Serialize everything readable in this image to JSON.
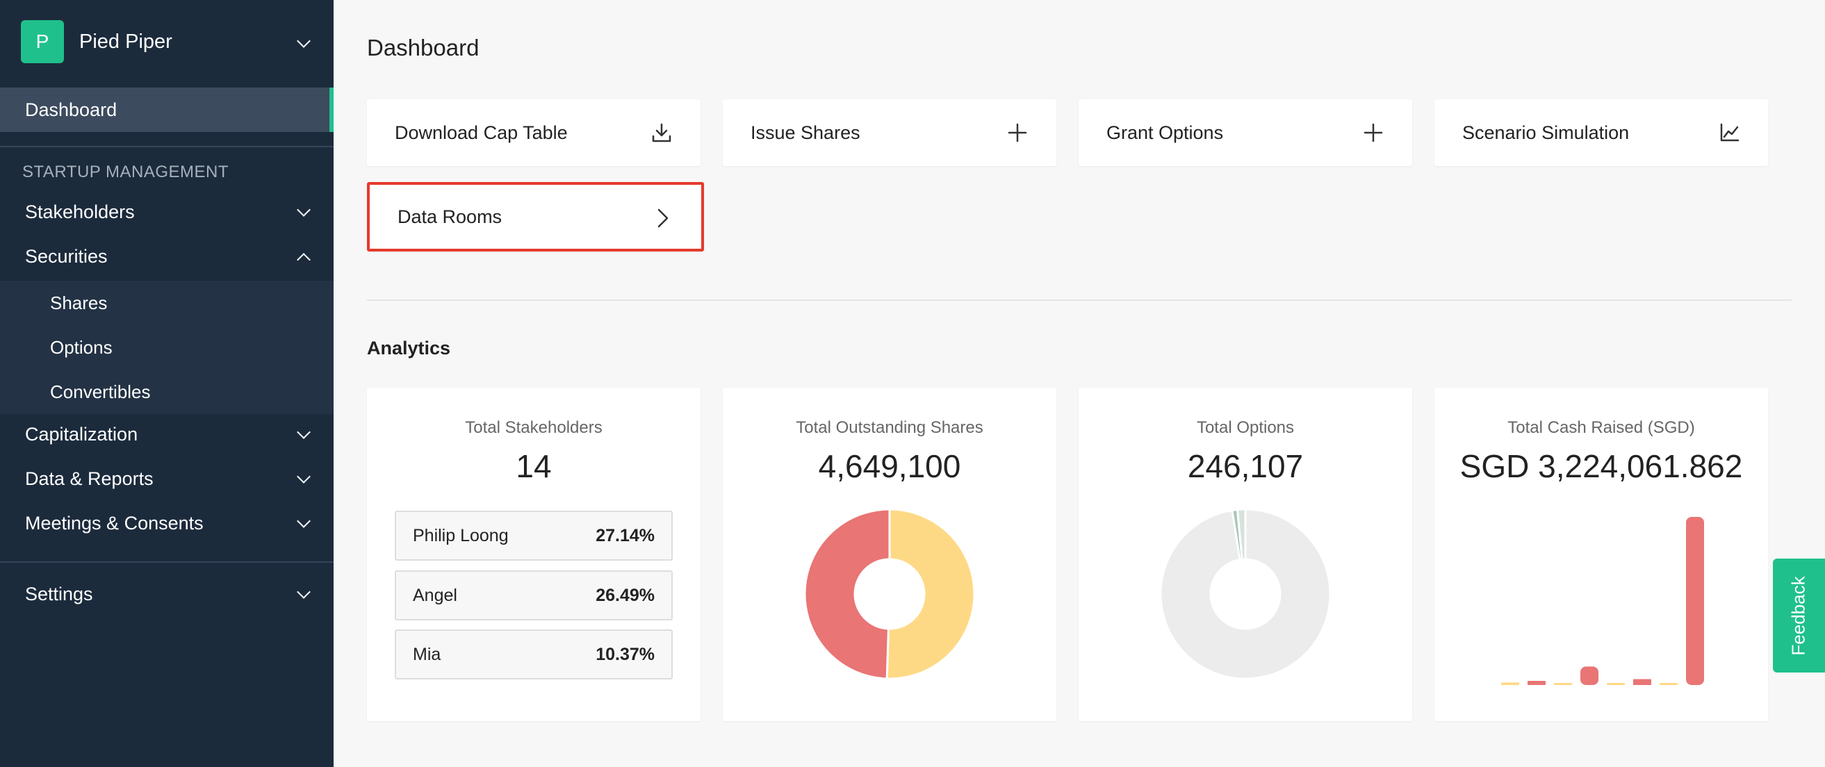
{
  "org": {
    "initial": "P",
    "name": "Pied Piper"
  },
  "sidebar": {
    "active_item": "Dashboard",
    "section_label": "STARTUP MANAGEMENT",
    "items": [
      {
        "label": "Stakeholders"
      },
      {
        "label": "Securities"
      },
      {
        "label": "Capitalization"
      },
      {
        "label": "Data & Reports"
      },
      {
        "label": "Meetings & Consents"
      },
      {
        "label": "Settings"
      }
    ],
    "securities_subitems": [
      {
        "label": "Shares"
      },
      {
        "label": "Options"
      },
      {
        "label": "Convertibles"
      }
    ]
  },
  "main": {
    "title": "Dashboard",
    "actions": [
      {
        "label": "Download Cap Table",
        "icon": "download-icon"
      },
      {
        "label": "Issue Shares",
        "icon": "plus-icon"
      },
      {
        "label": "Grant Options",
        "icon": "plus-icon"
      },
      {
        "label": "Scenario Simulation",
        "icon": "line-chart-icon"
      },
      {
        "label": "Data Rooms",
        "icon": "chevron-right-icon"
      }
    ],
    "analytics_title": "Analytics",
    "stats": {
      "stakeholders": {
        "label": "Total Stakeholders",
        "value": "14",
        "top_holders": [
          {
            "name": "Philip Loong",
            "pct": "27.14%"
          },
          {
            "name": "Angel",
            "pct": "26.49%"
          },
          {
            "name": "Mia",
            "pct": "10.37%"
          }
        ]
      },
      "shares": {
        "label": "Total Outstanding Shares",
        "value": "4,649,100"
      },
      "options": {
        "label": "Total Options",
        "value": "246,107"
      },
      "cash": {
        "label": "Total Cash Raised (SGD)",
        "value": "SGD 3,224,061.862"
      }
    }
  },
  "feedback_label": "Feedback",
  "colors": {
    "accent": "#20c08c",
    "sidebar": "#1c2b3c",
    "red": "#e97575",
    "yellow": "#fed985",
    "grey": "#ececec",
    "highlight": "#e53a2c"
  },
  "chart_data": [
    {
      "type": "pie",
      "title": "Total Outstanding Shares",
      "slices": [
        {
          "value": 50.5,
          "color": "#fed985"
        },
        {
          "value": 49.5,
          "color": "#e97575"
        }
      ]
    },
    {
      "type": "pie",
      "title": "Total Options",
      "slices": [
        {
          "value": 97.5,
          "color": "#ececec"
        },
        {
          "value": 1.0,
          "color": "#a9c6b9"
        },
        {
          "value": 1.5,
          "color": "#d6e2dc"
        }
      ]
    },
    {
      "type": "bar",
      "title": "Total Cash Raised (SGD)",
      "ylim": [
        0,
        100
      ],
      "values": [
        1.5,
        2.5,
        0.5,
        11,
        0,
        3.5,
        0.5,
        100
      ],
      "colors": [
        "#fed985",
        "#e97575",
        "#fed985",
        "#e97575",
        "#fed985",
        "#e97575",
        "#fed985",
        "#e97575"
      ]
    }
  ]
}
